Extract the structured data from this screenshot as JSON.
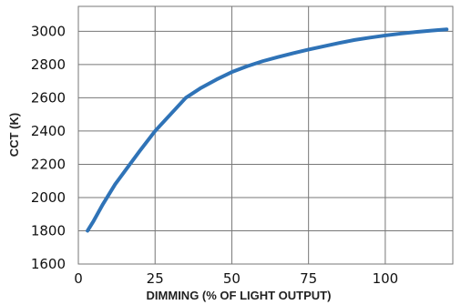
{
  "chart_data": {
    "type": "line",
    "title": "",
    "xlabel": "DIMMING (% OF LIGHT OUTPUT)",
    "ylabel": "CCT (K)",
    "xlim": [
      0,
      122
    ],
    "ylim": [
      1600,
      3150
    ],
    "x_ticks": [
      0,
      25,
      50,
      75,
      100
    ],
    "y_ticks": [
      1600,
      1800,
      2000,
      2200,
      2400,
      2600,
      2800,
      3000
    ],
    "x_tick_labels": [
      "0",
      "25",
      "50",
      "75",
      "100"
    ],
    "y_tick_labels": [
      "1600",
      "1800",
      "2000",
      "2200",
      "2400",
      "2600",
      "2800",
      "3000"
    ],
    "grid": true,
    "legend": "none",
    "colors": {
      "series": "#2f73b7",
      "grid": "#777777",
      "text": "#111111"
    },
    "series": [
      {
        "x": [
          3,
          5,
          8,
          12,
          16,
          20,
          25,
          30,
          35,
          40,
          45,
          50,
          55,
          60,
          65,
          70,
          75,
          80,
          85,
          90,
          95,
          100,
          105,
          110,
          115,
          120
        ],
        "y": [
          1800,
          1860,
          1960,
          2080,
          2180,
          2280,
          2400,
          2500,
          2600,
          2660,
          2710,
          2755,
          2790,
          2820,
          2845,
          2868,
          2890,
          2910,
          2930,
          2948,
          2962,
          2975,
          2986,
          2996,
          3004,
          3012
        ]
      }
    ]
  }
}
